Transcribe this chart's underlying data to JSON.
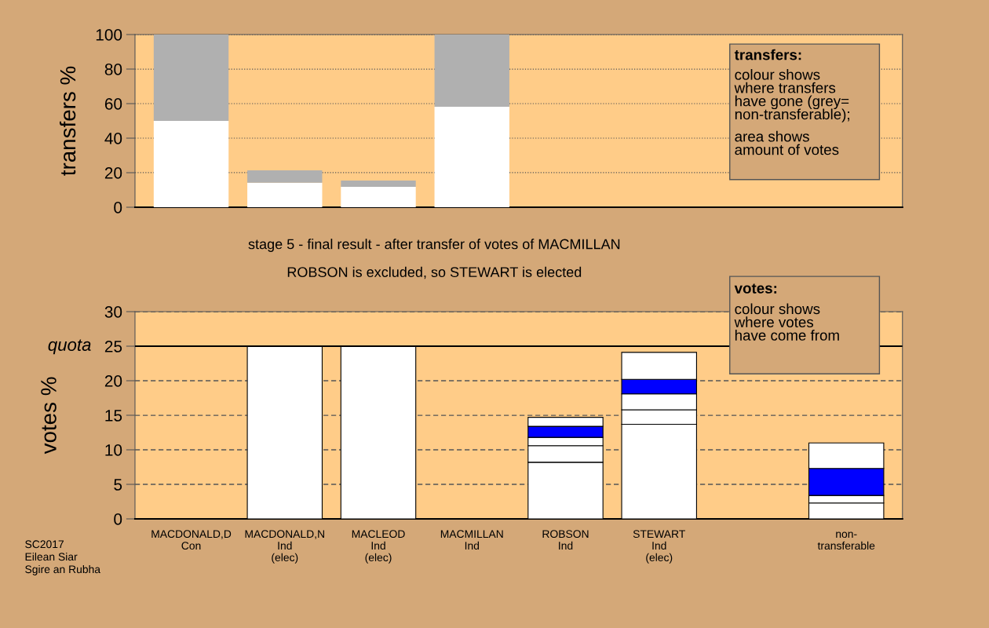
{
  "chart_data": [
    {
      "type": "bar",
      "stacked": true,
      "ylabel": "transfers %",
      "tick_labels": "y",
      "grid": "y",
      "categories": [
        null,
        null,
        null,
        null,
        null,
        null,
        null,
        null
      ],
      "series": [
        {
          "color": "#ffffff",
          "values": [
            50,
            14.2,
            11.8,
            58.2,
            0,
            0,
            0,
            0
          ]
        },
        {
          "color": "#b0b0b0",
          "values": [
            50,
            7.2,
            3.7,
            41.8,
            0,
            0,
            0,
            0
          ]
        }
      ],
      "ylim": [
        0,
        100
      ],
      "yticks": [
        0,
        20,
        40,
        60,
        80,
        100
      ],
      "annotations": [
        "transfers:",
        "colour shows\nwhere transfers\nhave gone (grey=\nnon-transferable);",
        "area shows\namount of votes"
      ]
    },
    {
      "type": "bar",
      "stacked": true,
      "title": "stage 5 - final result - after transfer of votes of MACMILLAN",
      "subtitle": "ROBSON is excluded, so STEWART is elected",
      "ylabel": "votes %",
      "grid": "y",
      "categories": [
        "MACDONALD,D\nCon",
        "MACDONALD,N\nInd\n(elec)",
        "MACLEOD\nInd\n(elec)",
        "MACMILLAN\nInd",
        "ROBSON\nInd",
        "STEWART\nInd\n(elec)",
        null,
        "non-\ntransferable"
      ],
      "series": [
        {
          "color": "#ffffff",
          "values": [
            0,
            25,
            25,
            0,
            8.2,
            13.7,
            null,
            2.3
          ]
        },
        {
          "color": "#ffffff",
          "values": [
            0,
            0,
            0,
            0,
            2.4,
            2.1,
            null,
            1.1
          ]
        },
        {
          "color": "#ffffff",
          "values": [
            0,
            0,
            0,
            0,
            1.2,
            2.3,
            null,
            0
          ]
        },
        {
          "color": "#0000ff",
          "values": [
            0,
            0,
            0,
            0,
            1.6,
            2.1,
            null,
            3.9
          ]
        },
        {
          "color": "#ffffff",
          "values": [
            0,
            0,
            0,
            0,
            1.3,
            3.9,
            null,
            3.7
          ]
        }
      ],
      "ylim": [
        0,
        30
      ],
      "yticks": [
        0,
        5,
        10,
        15,
        20,
        25,
        30
      ],
      "ref_lines": [
        {
          "axis": "y",
          "value": 25,
          "label": "quota",
          "color": "#000000"
        }
      ],
      "annotations": [
        "votes:",
        "colour shows\nwhere votes\nhave come from",
        "SC2017\nEilean Siar\nSgire an Rubha"
      ]
    }
  ]
}
